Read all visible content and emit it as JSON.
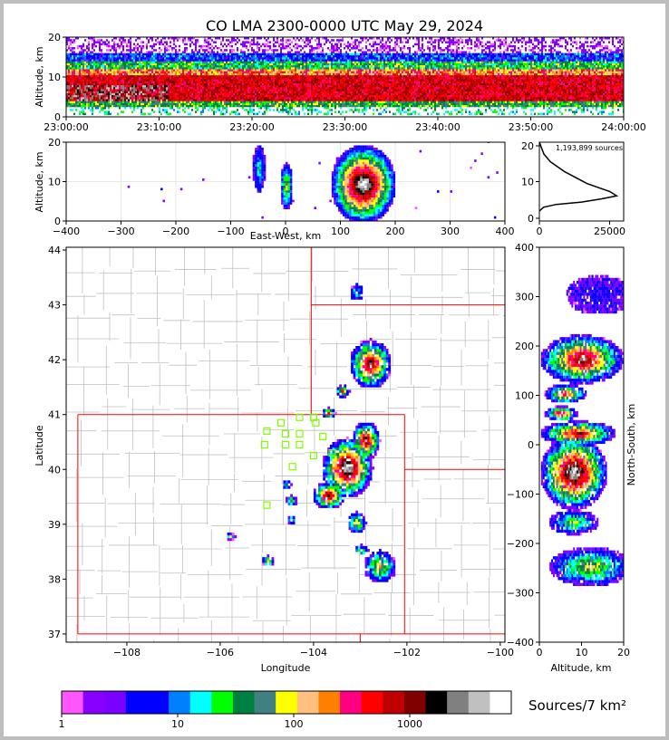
{
  "title": "CO LMA 2300-0000 UTC May 29, 2024",
  "colors": {
    "scale": [
      "#ff55ff",
      "#8800ff",
      "#7a00ff",
      "#0000ff",
      "#0000ff",
      "#0080ff",
      "#00ffff",
      "#00ff00",
      "#008040",
      "#408080",
      "#ffff00",
      "#ffc080",
      "#ff8000",
      "#ff0080",
      "#ff0000",
      "#c00000",
      "#800000",
      "#000000",
      "#808080",
      "#c0c0c0",
      "#ffffff"
    ],
    "map_lines": "#c0c0c0",
    "state_lines": "#ff0000",
    "stations": "#80ff00"
  },
  "chart_data": [
    {
      "id": "time_height",
      "type": "heatmap",
      "xlabel": "",
      "ylabel": "Altitude, km",
      "xticks": [
        "23:00:00",
        "23:10:00",
        "23:20:00",
        "23:30:00",
        "23:40:00",
        "23:50:00",
        "24:00:00"
      ],
      "yticks": [
        "0",
        "10",
        "20"
      ],
      "ylim": [
        0,
        20
      ]
    },
    {
      "id": "ew_height",
      "type": "heatmap",
      "xlabel": "East-West, km",
      "ylabel": "Altitude, km",
      "xticks": [
        "−400",
        "−300",
        "−200",
        "−100",
        "0",
        "100",
        "200",
        "300",
        "400"
      ],
      "yticks": [
        "0",
        "10",
        "20"
      ],
      "xlim": [
        -400,
        400
      ],
      "ylim": [
        0,
        20
      ]
    },
    {
      "id": "altitude_histogram",
      "type": "line",
      "annotation": "1,193,899 sources",
      "xticks": [
        "0",
        "25000"
      ],
      "yticks": [
        "0",
        "10",
        "20"
      ],
      "xlim": [
        0,
        30000
      ],
      "ylim": [
        0,
        20
      ],
      "x": [
        0,
        1500,
        6000,
        15000,
        22000,
        27500,
        25000,
        17000,
        9000,
        4000,
        1600,
        0
      ],
      "y": [
        2.5,
        3.5,
        4.2,
        4.8,
        5.6,
        6.4,
        7.5,
        9.5,
        12.5,
        15,
        17,
        20
      ]
    },
    {
      "id": "plan_view",
      "type": "heatmap",
      "xlabel": "Longitude",
      "ylabel": "Latitude",
      "xticks": [
        "−108",
        "−106",
        "−104",
        "−102",
        "−100"
      ],
      "yticks": [
        "37",
        "38",
        "39",
        "40",
        "41",
        "42",
        "43",
        "44"
      ],
      "xlim": [
        -109.3,
        -99.9
      ],
      "ylim": [
        36.85,
        44.05
      ]
    },
    {
      "id": "ns_height",
      "type": "heatmap",
      "xlabel": "Altitude, km",
      "ylabel": "North-South, km",
      "xticks": [
        "0",
        "10",
        "20"
      ],
      "yticks": [
        "−400",
        "−300",
        "−200",
        "−100",
        "0",
        "100",
        "200",
        "300",
        "400"
      ],
      "xlim": [
        0,
        20
      ],
      "ylim": [
        -400,
        400
      ]
    },
    {
      "id": "colorbar",
      "type": "heatmap",
      "label": "Sources/7 km²",
      "ticks": [
        "1",
        "10",
        "100",
        "1000"
      ],
      "scale": "log"
    }
  ]
}
